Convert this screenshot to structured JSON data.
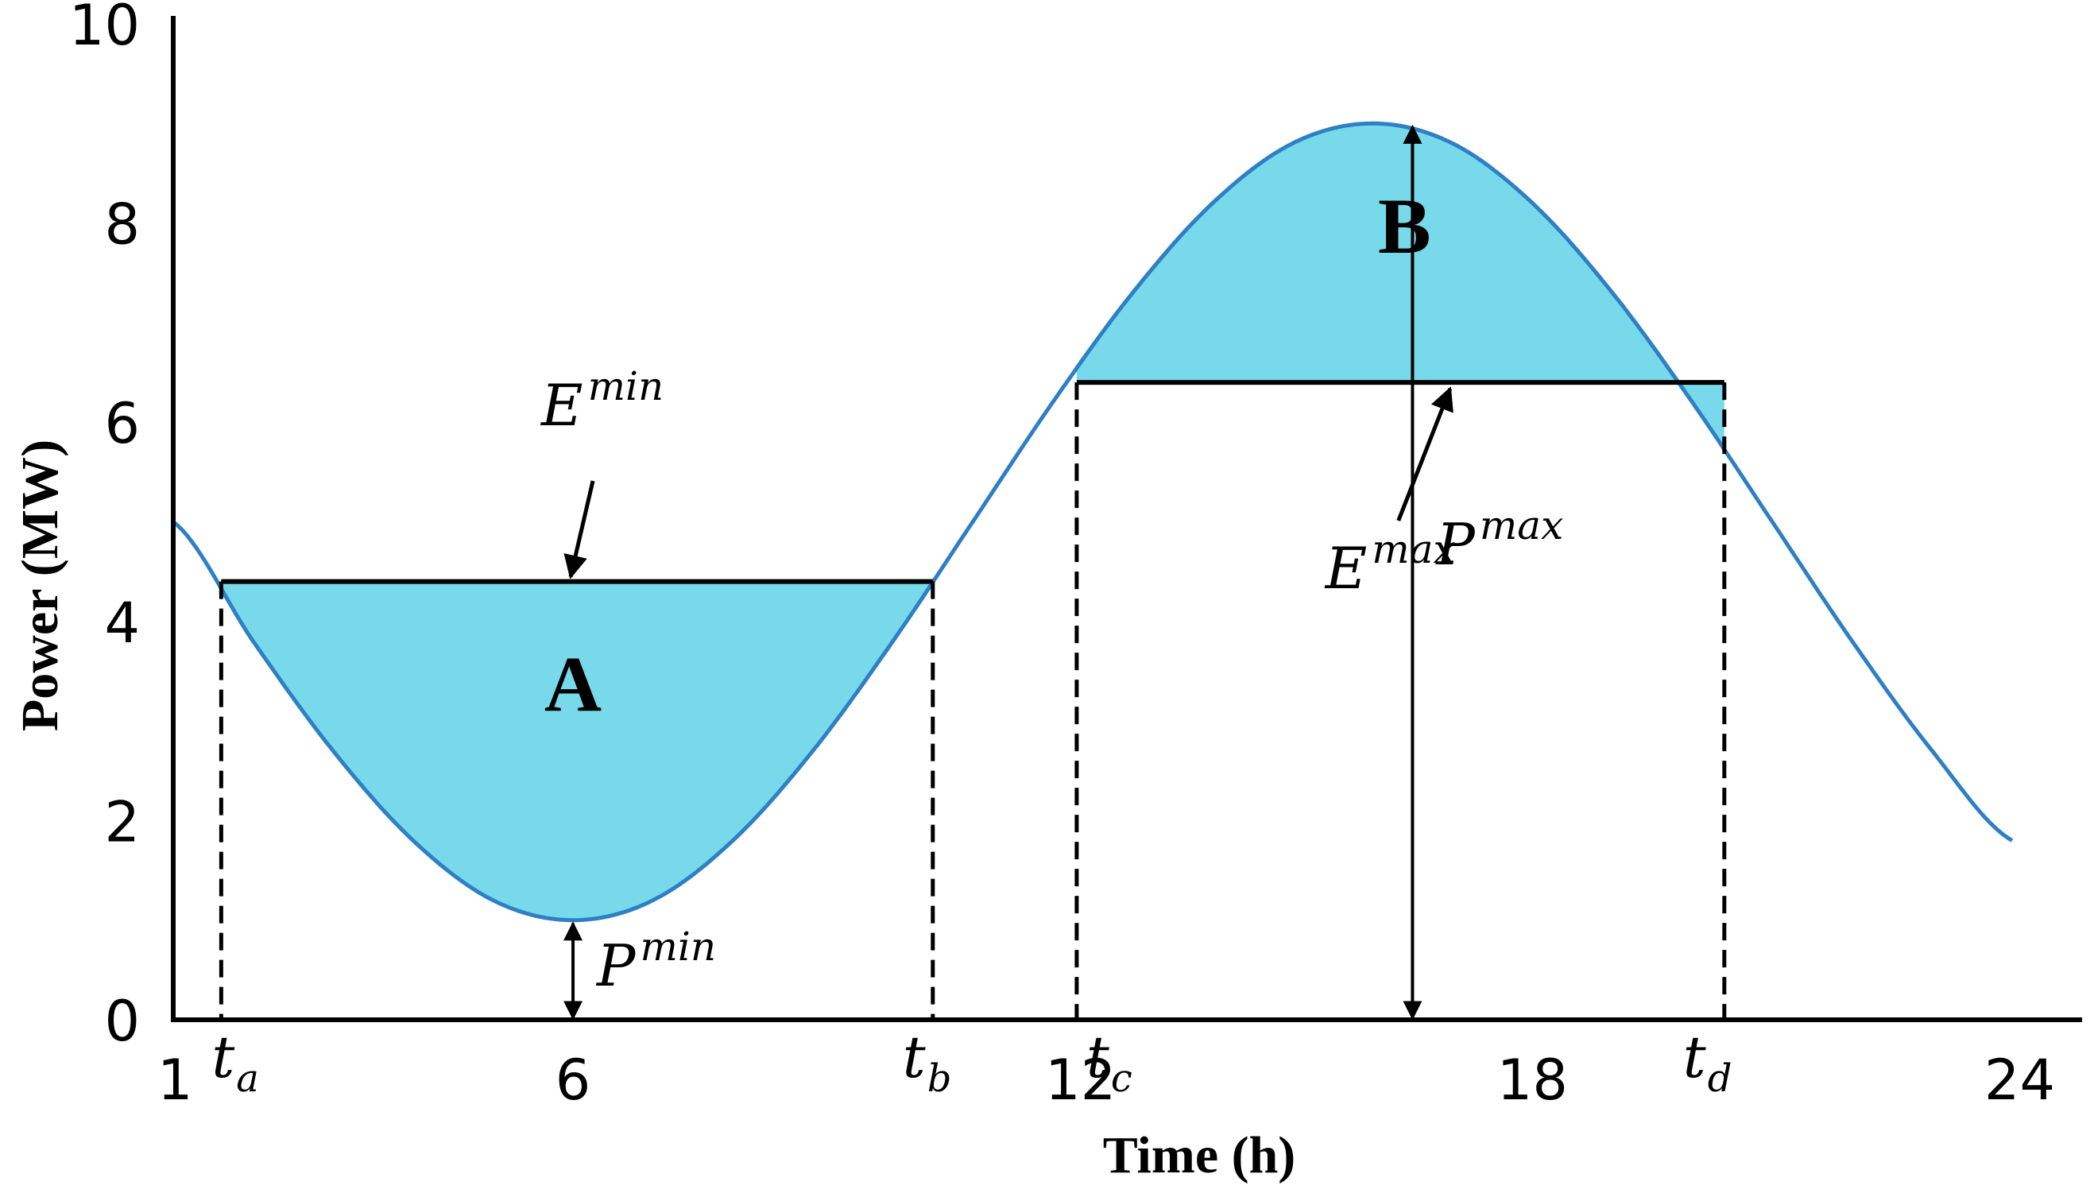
{
  "chart_data": {
    "type": "line",
    "title": "",
    "xlabel": "Time (h)",
    "ylabel": "Power (MW)",
    "xlim": [
      1,
      24
    ],
    "ylim": [
      0,
      10
    ],
    "x_ticks": [
      {
        "value": 1,
        "label": "1"
      },
      {
        "value": 6,
        "label": "6"
      },
      {
        "value": 12,
        "label": "12"
      },
      {
        "value": 18,
        "label": "18"
      },
      {
        "value": 24,
        "label": "24"
      }
    ],
    "y_ticks": [
      0,
      2,
      4,
      6,
      8,
      10
    ],
    "grid": false,
    "curve": {
      "x": [
        1,
        2,
        3,
        4,
        5,
        6,
        7,
        8,
        9,
        10,
        11,
        12,
        13,
        14,
        15,
        16,
        17,
        18,
        19,
        20,
        21,
        22,
        23,
        24
      ],
      "y": [
        5.0,
        3.8,
        2.7,
        1.8,
        1.2,
        1.0,
        1.2,
        1.8,
        2.7,
        3.8,
        5.0,
        6.2,
        7.3,
        8.2,
        8.8,
        9.0,
        8.8,
        8.2,
        7.3,
        6.2,
        5.0,
        3.8,
        2.7,
        1.8
      ],
      "color": "#2e7fc4"
    },
    "fill_color": "#77d9ea",
    "regions": [
      {
        "label": "A",
        "t_start": "ta",
        "t_end": "tb",
        "threshold": 4.4,
        "threshold_label": "min"
      },
      {
        "label": "B",
        "t_start": "tc",
        "t_end": "td",
        "threshold": 6.4,
        "threshold_label": "max"
      }
    ],
    "markers": [
      {
        "name": "ta",
        "x": 1.6,
        "sym": "t",
        "sub": "a"
      },
      {
        "name": "tb",
        "x": 10.5,
        "sym": "t",
        "sub": "b"
      },
      {
        "name": "tc",
        "x": 12.3,
        "sym": "t",
        "sub": "c"
      },
      {
        "name": "td",
        "x": 20.4,
        "sym": "t",
        "sub": "d"
      }
    ],
    "annotations": {
      "E_min": {
        "sym": "E",
        "sup": "min",
        "points_to": [
          6,
          4.4
        ]
      },
      "E_max": {
        "sym": "E",
        "sup": "max",
        "points_to": [
          17,
          6.4
        ]
      },
      "P_min": {
        "sym": "P",
        "sup": "min",
        "from": [
          6,
          0
        ],
        "to": [
          6,
          1.0
        ]
      },
      "P_max": {
        "sym": "P",
        "sup": "max",
        "from": [
          16.5,
          0
        ],
        "to": [
          16.5,
          9.0
        ]
      }
    }
  }
}
